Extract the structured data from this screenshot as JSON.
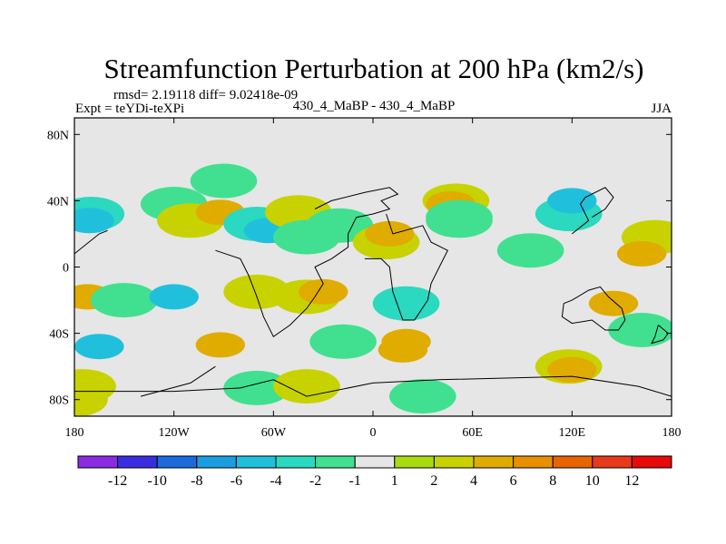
{
  "chart_data": {
    "type": "heatmap",
    "title": "Streamfunction Perturbation at 200 hPa (km2/s)",
    "stats_text": "rmsd= 2.19118 diff= 9.02418e-09",
    "left_label": "Expt = teYDi-teXPi",
    "center_label": "430_4_MaBP - 430_4_MaBP",
    "right_label": "JJA",
    "xlim": [
      -180,
      180
    ],
    "ylim": [
      -90,
      90
    ],
    "x_ticks": [
      {
        "value": -180,
        "label": "180"
      },
      {
        "value": -120,
        "label": "120W"
      },
      {
        "value": -60,
        "label": "60W"
      },
      {
        "value": 0,
        "label": "0"
      },
      {
        "value": 60,
        "label": "60E"
      },
      {
        "value": 120,
        "label": "120E"
      },
      {
        "value": 180,
        "label": "180"
      }
    ],
    "y_ticks": [
      {
        "value": 80,
        "label": "80N"
      },
      {
        "value": 40,
        "label": "40N"
      },
      {
        "value": 0,
        "label": "0"
      },
      {
        "value": -40,
        "label": "40S"
      },
      {
        "value": -80,
        "label": "80S"
      }
    ],
    "colorbar": {
      "labels": [
        "-12",
        "-10",
        "-8",
        "-6",
        "-4",
        "-2",
        "-1",
        "1",
        "2",
        "4",
        "6",
        "8",
        "10",
        "12"
      ],
      "colors": [
        "#8a2be2",
        "#3a2de0",
        "#1c6bdc",
        "#1a9ee0",
        "#20c0dc",
        "#2bd8c0",
        "#40e090",
        "#e6e6e6",
        "#a8dc10",
        "#c8d200",
        "#e0ac00",
        "#e89000",
        "#e86400",
        "#e63a1a",
        "#e60a0a"
      ]
    },
    "cells": [
      {
        "lon": -170,
        "lat": 32,
        "v": -3
      },
      {
        "lon": -171,
        "lat": 28,
        "v": -6
      },
      {
        "lon": -120,
        "lat": 38,
        "v": -2
      },
      {
        "lon": -110,
        "lat": 28,
        "v": 2
      },
      {
        "lon": -92,
        "lat": 33,
        "v": 4
      },
      {
        "lon": -90,
        "lat": 52,
        "v": -2
      },
      {
        "lon": -70,
        "lat": 26,
        "v": -3
      },
      {
        "lon": -63,
        "lat": 22,
        "v": -5
      },
      {
        "lon": -45,
        "lat": 33,
        "v": 2
      },
      {
        "lon": -40,
        "lat": 18,
        "v": -2
      },
      {
        "lon": -20,
        "lat": 25,
        "v": -2
      },
      {
        "lon": 8,
        "lat": 15,
        "v": 2
      },
      {
        "lon": 10,
        "lat": 20,
        "v": 5
      },
      {
        "lon": 50,
        "lat": 40,
        "v": 2
      },
      {
        "lon": 47,
        "lat": 38,
        "v": 4
      },
      {
        "lon": 52,
        "lat": 28,
        "v": -1.5
      },
      {
        "lon": 95,
        "lat": 10,
        "v": -1.5
      },
      {
        "lon": 118,
        "lat": 32,
        "v": -3
      },
      {
        "lon": 120,
        "lat": 40,
        "v": -6
      },
      {
        "lon": 170,
        "lat": 18,
        "v": 2
      },
      {
        "lon": 162,
        "lat": 8,
        "v": 4
      },
      {
        "lon": 52,
        "lat": 30,
        "v": -2
      },
      {
        "lon": -172,
        "lat": -18,
        "v": 4
      },
      {
        "lon": -150,
        "lat": -20,
        "v": -2
      },
      {
        "lon": -120,
        "lat": -18,
        "v": -5
      },
      {
        "lon": -70,
        "lat": -15,
        "v": 2
      },
      {
        "lon": -40,
        "lat": -18,
        "v": 2
      },
      {
        "lon": -30,
        "lat": -15,
        "v": 5
      },
      {
        "lon": 20,
        "lat": -22,
        "v": -3
      },
      {
        "lon": 145,
        "lat": -22,
        "v": 4
      },
      {
        "lon": 162,
        "lat": -38,
        "v": -2
      },
      {
        "lon": -165,
        "lat": -48,
        "v": -5
      },
      {
        "lon": -92,
        "lat": -47,
        "v": 4
      },
      {
        "lon": -18,
        "lat": -45,
        "v": -2
      },
      {
        "lon": 20,
        "lat": -45,
        "v": 4
      },
      {
        "lon": 18,
        "lat": -50,
        "v": 5
      },
      {
        "lon": 118,
        "lat": -60,
        "v": 2
      },
      {
        "lon": 120,
        "lat": -62,
        "v": 5
      },
      {
        "lon": -70,
        "lat": -73,
        "v": -2
      },
      {
        "lon": -40,
        "lat": -72,
        "v": 2
      },
      {
        "lon": 30,
        "lat": -78,
        "v": -1.5
      },
      {
        "lon": -175,
        "lat": -72,
        "v": 2
      },
      {
        "lon": -180,
        "lat": -80,
        "v": 3
      }
    ]
  }
}
